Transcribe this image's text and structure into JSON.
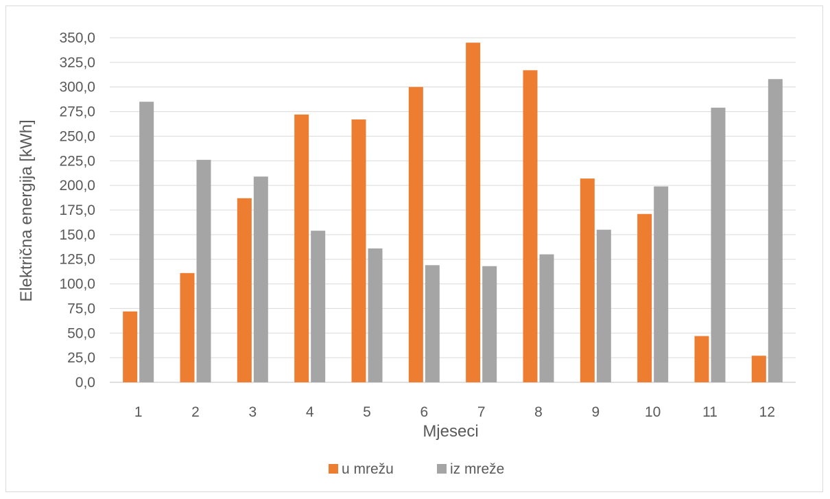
{
  "chart_data": {
    "type": "bar",
    "title": "",
    "xlabel": "Mjeseci",
    "ylabel": "Električna energija [kWh]",
    "categories": [
      "1",
      "2",
      "3",
      "4",
      "5",
      "6",
      "7",
      "8",
      "9",
      "10",
      "11",
      "12"
    ],
    "series": [
      {
        "name": "u mrežu",
        "color": "#ED7D31",
        "values": [
          72,
          111,
          187,
          272,
          267,
          300,
          345,
          317,
          207,
          171,
          47,
          27
        ]
      },
      {
        "name": "iz mreže",
        "color": "#A5A5A5",
        "values": [
          285,
          226,
          209,
          154,
          136,
          119,
          118,
          130,
          155,
          199,
          279,
          308
        ]
      }
    ],
    "ylim": [
      0,
      350
    ],
    "yticks": [
      "0,0",
      "25,0",
      "50,0",
      "75,0",
      "100,0",
      "125,0",
      "150,0",
      "175,0",
      "200,0",
      "225,0",
      "250,0",
      "275,0",
      "300,0",
      "325,0",
      "350,0"
    ],
    "grid": true,
    "legend_position": "bottom"
  }
}
